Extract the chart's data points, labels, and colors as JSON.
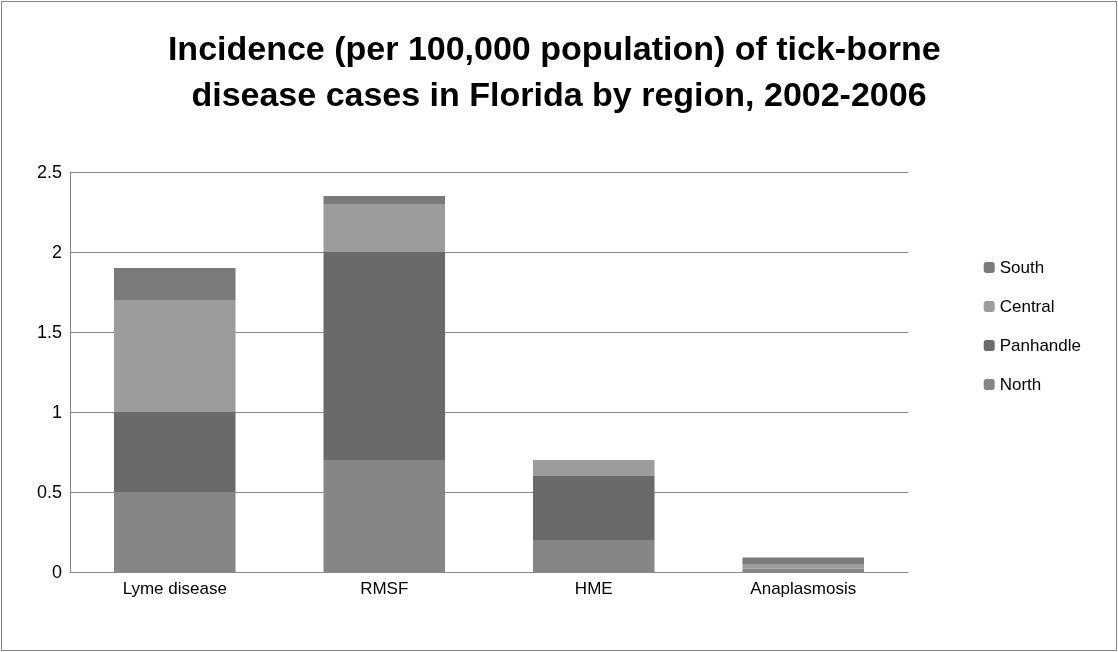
{
  "chart_data": {
    "type": "bar",
    "title": "Incidence (per 100,000 population) of tick-borne disease cases in Florida by region, 2002-2006",
    "categories": [
      "Lyme disease",
      "RMSF",
      "HME",
      "Anaplasmosis"
    ],
    "stacked": true,
    "series": [
      {
        "name": "North",
        "color": "#868686",
        "values": [
          0.5,
          0.7,
          0.2,
          0.02
        ]
      },
      {
        "name": "Panhandle",
        "color": "#6a6a6a",
        "values": [
          0.5,
          1.3,
          0.4,
          0
        ]
      },
      {
        "name": "Central",
        "color": "#9c9c9c",
        "values": [
          0.7,
          0.3,
          0.1,
          0.03
        ]
      },
      {
        "name": "South",
        "color": "#7a7a7a",
        "values": [
          0.2,
          0.05,
          0,
          0.04
        ]
      }
    ],
    "ylim": [
      0,
      2.5
    ],
    "yticks": [
      0,
      0.5,
      1,
      1.5,
      2,
      2.5
    ],
    "grid": "y",
    "legend": "right"
  }
}
